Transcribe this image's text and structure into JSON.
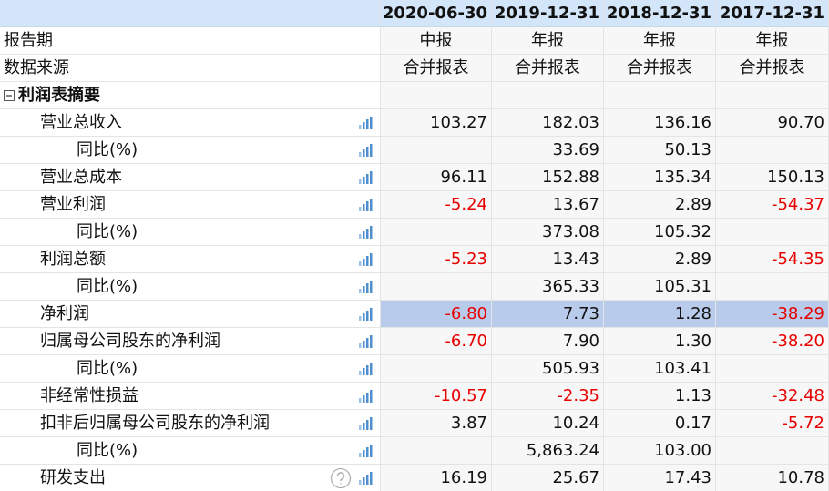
{
  "header": {
    "columns": [
      "2020-06-30",
      "2019-12-31",
      "2018-12-31",
      "2017-12-31"
    ]
  },
  "rows": [
    {
      "label": "报告期",
      "values": [
        "中报",
        "年报",
        "年报",
        "年报"
      ]
    },
    {
      "label": "数据来源",
      "values": [
        "合并报表",
        "合并报表",
        "合并报表",
        "合并报表"
      ]
    },
    {
      "label": "利润表摘要",
      "values": [
        null,
        null,
        null,
        null
      ]
    },
    {
      "label": "营业总收入",
      "values": [
        "103.27",
        "182.03",
        "136.16",
        "90.70"
      ]
    },
    {
      "label": "同比(%)",
      "values": [
        null,
        "33.69",
        "50.13",
        null
      ]
    },
    {
      "label": "营业总成本",
      "values": [
        "96.11",
        "152.88",
        "135.34",
        "150.13"
      ]
    },
    {
      "label": "营业利润",
      "values": [
        "-5.24",
        "13.67",
        "2.89",
        "-54.37"
      ]
    },
    {
      "label": "同比(%)",
      "values": [
        null,
        "373.08",
        "105.32",
        null
      ]
    },
    {
      "label": "利润总额",
      "values": [
        "-5.23",
        "13.43",
        "2.89",
        "-54.35"
      ]
    },
    {
      "label": "同比(%)",
      "values": [
        null,
        "365.33",
        "105.31",
        null
      ]
    },
    {
      "label": "净利润",
      "values": [
        "-6.80",
        "7.73",
        "1.28",
        "-38.29"
      ]
    },
    {
      "label": "归属母公司股东的净利润",
      "values": [
        "-6.70",
        "7.90",
        "1.30",
        "-38.20"
      ]
    },
    {
      "label": "同比(%)",
      "values": [
        null,
        "505.93",
        "103.41",
        null
      ]
    },
    {
      "label": "非经常性损益",
      "values": [
        "-10.57",
        "-2.35",
        "1.13",
        "-32.48"
      ]
    },
    {
      "label": "扣非后归属母公司股东的净利润",
      "values": [
        "3.87",
        "10.24",
        "0.17",
        "-5.72"
      ]
    },
    {
      "label": "同比(%)",
      "values": [
        null,
        "5,863.24",
        "103.00",
        null
      ]
    },
    {
      "label": "研发支出",
      "values": [
        "16.19",
        "25.67",
        "17.43",
        "10.78"
      ]
    }
  ]
}
